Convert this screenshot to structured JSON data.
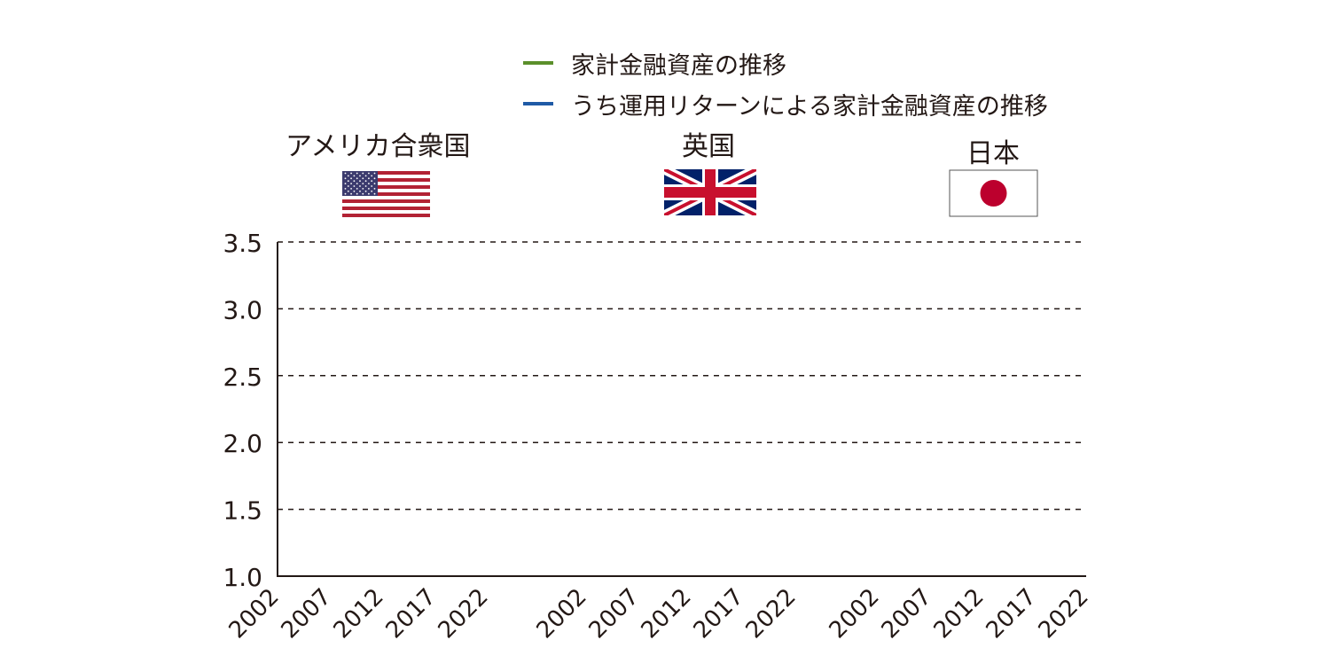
{
  "chart_data": {
    "type": "line",
    "legend": {
      "placement": "top-center",
      "entries": [
        {
          "label": "家計金融資産の推移",
          "color": "#5b8f2b"
        },
        {
          "label": "うち運用リターンによる家計金融資産の推移",
          "color": "#1f5aa6"
        }
      ]
    },
    "yaxis": {
      "ylim": [
        1.0,
        3.5
      ],
      "ticks": [
        "1.0",
        "1.5",
        "2.0",
        "2.5",
        "3.0",
        "3.5"
      ],
      "grid": "dashed"
    },
    "panels": [
      {
        "country": "アメリカ合衆国",
        "flag_icon": "us-flag-icon",
        "x_ticks": [
          "2002",
          "2007",
          "2012",
          "2017",
          "2022"
        ],
        "series": []
      },
      {
        "country": "英国",
        "flag_icon": "uk-flag-icon",
        "x_ticks": [
          "2002",
          "2007",
          "2012",
          "2017",
          "2022"
        ],
        "series": []
      },
      {
        "country": "日本",
        "flag_icon": "jp-flag-icon",
        "x_ticks": [
          "2002",
          "2007",
          "2012",
          "2017",
          "2022"
        ],
        "series": []
      }
    ]
  }
}
